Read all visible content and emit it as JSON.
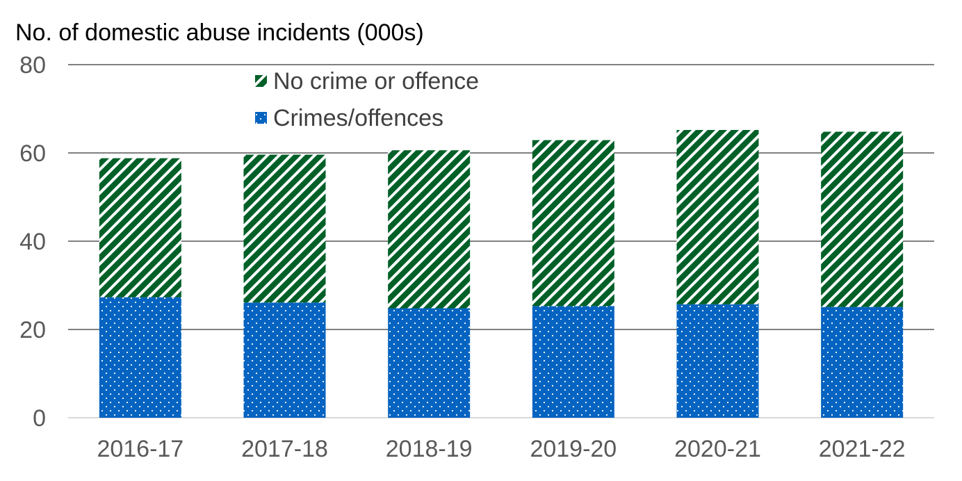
{
  "chart_data": {
    "type": "bar",
    "stacked": true,
    "title": "No. of domestic abuse incidents (000s)",
    "categories": [
      "2016-17",
      "2017-18",
      "2018-19",
      "2019-20",
      "2020-21",
      "2021-22"
    ],
    "series": [
      {
        "name": "Crimes/offences",
        "values": [
          27.3,
          26.1,
          24.8,
          25.3,
          25.7,
          25.1
        ],
        "color": "#0563c1",
        "pattern": "dots"
      },
      {
        "name": "No crime or offence",
        "values": [
          31.5,
          33.5,
          35.8,
          37.6,
          39.5,
          39.7
        ],
        "color": "#006028",
        "pattern": "diagonal-stripes"
      }
    ],
    "ylim": [
      0,
      80
    ],
    "yticks": [
      0,
      20,
      40,
      60,
      80
    ],
    "grid": true,
    "legend_position": "top-center"
  }
}
